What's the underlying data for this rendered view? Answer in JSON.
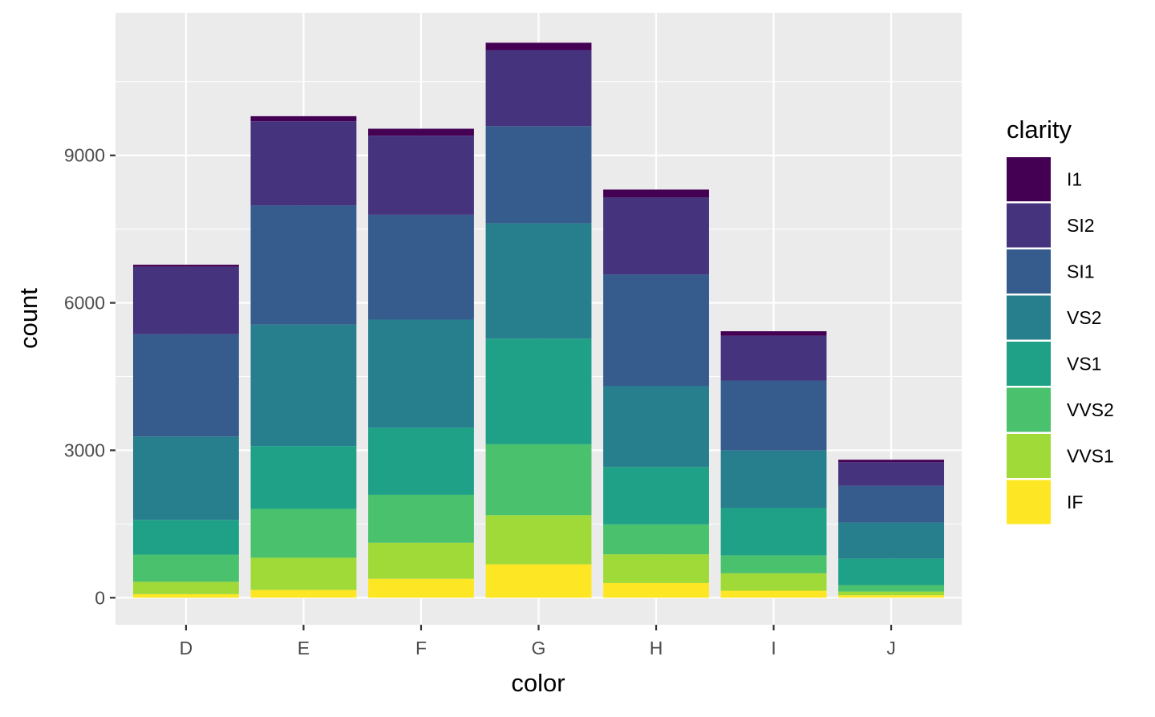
{
  "chart_data": {
    "type": "bar",
    "stacked": true,
    "xlabel": "color",
    "ylabel": "count",
    "categories": [
      "D",
      "E",
      "F",
      "G",
      "H",
      "I",
      "J"
    ],
    "ylim": [
      -550,
      11900
    ],
    "yticks": [
      0,
      3000,
      6000,
      9000
    ],
    "ytick_labels": [
      "0",
      "3000",
      "6000",
      "9000"
    ],
    "grid": true,
    "legend": {
      "title": "clarity",
      "placement": "right"
    },
    "stack_order_bottom_to_top": [
      "IF",
      "VVS1",
      "VVS2",
      "VS1",
      "VS2",
      "SI1",
      "SI2",
      "I1"
    ],
    "series": [
      {
        "name": "I1",
        "color": "#440154",
        "values": [
          42,
          102,
          143,
          150,
          162,
          92,
          50
        ]
      },
      {
        "name": "SI2",
        "color": "#46337E",
        "values": [
          1370,
          1713,
          1609,
          1548,
          1563,
          912,
          479
        ]
      },
      {
        "name": "SI1",
        "color": "#365C8D",
        "values": [
          2083,
          2426,
          2131,
          1976,
          2275,
          1424,
          750
        ]
      },
      {
        "name": "VS2",
        "color": "#277F8E",
        "values": [
          1697,
          2470,
          2201,
          2347,
          1643,
          1169,
          731
        ]
      },
      {
        "name": "VS1",
        "color": "#1FA187",
        "values": [
          705,
          1281,
          1364,
          2148,
          1169,
          962,
          542
        ]
      },
      {
        "name": "VVS2",
        "color": "#4AC16D",
        "values": [
          553,
          991,
          975,
          1443,
          608,
          365,
          131
        ]
      },
      {
        "name": "VVS1",
        "color": "#A0DA39",
        "values": [
          252,
          656,
          734,
          999,
          585,
          355,
          74
        ]
      },
      {
        "name": "IF",
        "color": "#FDE725",
        "values": [
          73,
          158,
          385,
          681,
          299,
          143,
          51
        ]
      }
    ]
  }
}
